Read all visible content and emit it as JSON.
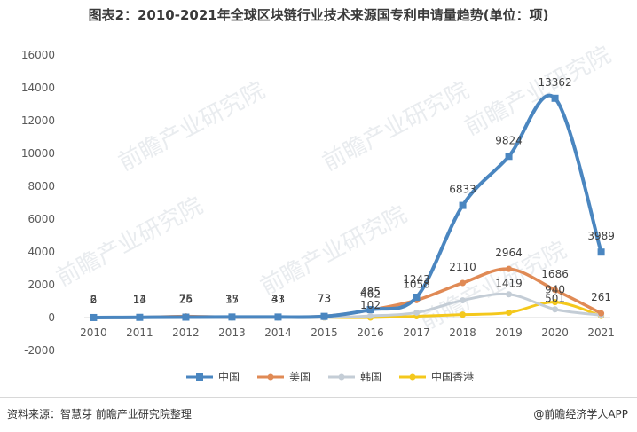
{
  "chart_data": {
    "type": "line",
    "title": "图表2：2010-2021年全球区块链行业技术来源国专利申请量趋势(单位：项)",
    "categories": [
      "2010",
      "2011",
      "2012",
      "2013",
      "2014",
      "2015",
      "2016",
      "2017",
      "2018",
      "2019",
      "2020",
      "2021"
    ],
    "ylim": [
      -2000,
      16000
    ],
    "yticks": [
      -2000,
      0,
      2000,
      4000,
      6000,
      8000,
      10000,
      12000,
      14000,
      16000
    ],
    "grid": false,
    "legend_position": "bottom",
    "series": [
      {
        "name": "中国",
        "color": "#4a86c0",
        "marker": "square",
        "values": [
          2,
          14,
          26,
          35,
          33,
          73,
          485,
          1243,
          6833,
          9824,
          13362,
          3989
        ],
        "labels": [
          "2",
          "14",
          "26",
          "35",
          "33",
          "73",
          "485",
          "1243",
          "6833",
          "9824",
          "13362",
          "3989"
        ]
      },
      {
        "name": "美国",
        "color": "#e08a55",
        "marker": "circle",
        "values": [
          6,
          13,
          75,
          17,
          41,
          73,
          462,
          1058,
          2110,
          2964,
          1686,
          261
        ],
        "labels": [
          "6",
          "13",
          "75",
          "17",
          "41",
          "73",
          "462",
          "1058",
          "2110",
          "2964",
          "1686",
          "261"
        ]
      },
      {
        "name": "韩国",
        "color": "#c4cdd6",
        "marker": "circle",
        "values": [
          0,
          0,
          0,
          0,
          0,
          0,
          102,
          300,
          1050,
          1419,
          501,
          150
        ],
        "labels": [
          "",
          "",
          "",
          "",
          "",
          "",
          "102",
          "",
          "",
          "1419",
          "501",
          ""
        ]
      },
      {
        "name": "中国香港",
        "color": "#f4c81c",
        "marker": "circle",
        "values": [
          0,
          0,
          0,
          0,
          0,
          0,
          0,
          80,
          180,
          300,
          940,
          100
        ],
        "labels": [
          "",
          "",
          "",
          "",
          "",
          "",
          "",
          "",
          "",
          "",
          "940",
          ""
        ]
      }
    ]
  },
  "watermark": "前瞻产业研究院",
  "footer": {
    "source": "资料来源：智慧芽 前瞻产业研究院整理",
    "brand": "@前瞻经济学人APP"
  }
}
